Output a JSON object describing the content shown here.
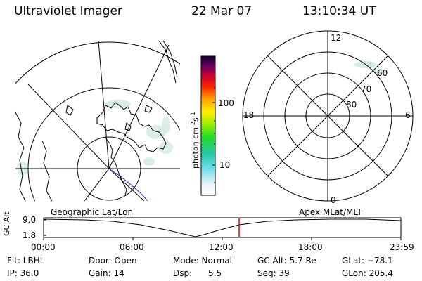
{
  "header": {
    "title": "Ultraviolet Imager",
    "date": "22 Mar 07",
    "time": "13:10:34 UT"
  },
  "colorbar": {
    "label": "photon cm",
    "label_exp1": "-2",
    "label_mid": "s",
    "label_exp2": "-1",
    "ticks": [
      "100",
      "10"
    ]
  },
  "polar_plot": {
    "mlt_labels": {
      "top": "12",
      "bottom": "0",
      "left": "18",
      "right": "6"
    },
    "lat_labels": [
      "60",
      "70",
      "80"
    ]
  },
  "orbit_plot": {
    "left_title": "Geographic Lat/Lon",
    "right_title": "Apex MLat/MLT",
    "y_axis_label": "GC Alt",
    "y_ticks": [
      "9.0",
      "1.8"
    ],
    "x_ticks": [
      "00:00",
      "06:00",
      "12:00",
      "18:00",
      "23:59"
    ]
  },
  "info_rows": [
    [
      {
        "key": "flt",
        "text": "Flt: LBHL"
      },
      {
        "key": "door",
        "text": "Door: Open"
      },
      {
        "key": "mode",
        "text": "Mode: Normal"
      },
      {
        "key": "gcalt",
        "text": "GC Alt: 5.7 Re"
      },
      {
        "key": "glat",
        "text": "GLat: −78.1"
      }
    ],
    [
      {
        "key": "ip",
        "text": "IP: 36.0"
      },
      {
        "key": "gain",
        "text": "Gain: 14"
      },
      {
        "key": "dsp",
        "text": "Dsp:      5.5"
      },
      {
        "key": "seq",
        "text": "Seq: 39"
      },
      {
        "key": "glon",
        "text": "GLon: 205.4"
      }
    ]
  ],
  "colors": {
    "marker": "#e00000",
    "coast": "#000000",
    "track": "#2020c0",
    "aurora": "#d8ece4"
  }
}
